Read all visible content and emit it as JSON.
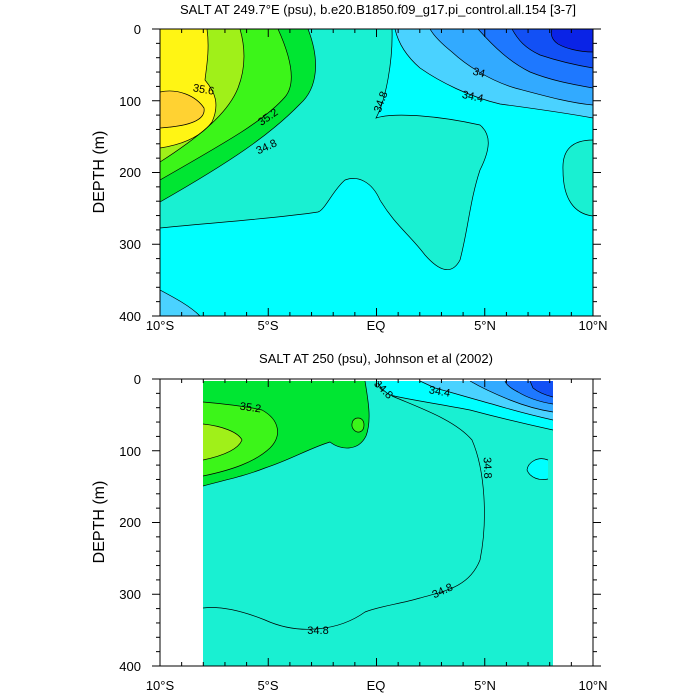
{
  "colors": {
    "c33_6": "#0a23e6",
    "c33_8": "#1250f5",
    "c34_0": "#1e78ff",
    "c34_2": "#32aaff",
    "c34_4": "#4ad2ff",
    "c34_6": "#00ffff",
    "c34_8": "#19f0d2",
    "c35_0": "#00e632",
    "c35_2": "#3cf519",
    "c35_4": "#a0f019",
    "c35_6": "#fff514",
    "c35_8": "#ffd232"
  },
  "chart_data": [
    {
      "type": "contour",
      "title": "SALT AT 249.7°E (psu), b.e20.B1850.f09_g17.pi_control.all.154 [3-7]",
      "xlabel": "",
      "ylabel": "DEPTH (m)",
      "x_ticks": [
        "10°S",
        "5°S",
        "EQ",
        "5°N",
        "10°N"
      ],
      "y_ticks": [
        "0",
        "100",
        "200",
        "300",
        "400"
      ],
      "xlim": [
        -10,
        10
      ],
      "ylim": [
        400,
        0
      ],
      "contour_labels": [
        "35.6",
        "35.2",
        "34.8",
        "34.8",
        "34",
        "34.4"
      ]
    },
    {
      "type": "contour",
      "title": "SALT AT 250 (psu), Johnson et al (2002)",
      "xlabel": "",
      "ylabel": "DEPTH (m)",
      "x_ticks": [
        "10°S",
        "5°S",
        "EQ",
        "5°N",
        "10°N"
      ],
      "y_ticks": [
        "0",
        "100",
        "200",
        "300",
        "400"
      ],
      "xlim": [
        -10,
        10
      ],
      "ylim": [
        400,
        0
      ],
      "contour_labels": [
        "35.2",
        "34.8",
        "34.4",
        "34.8",
        "34.8",
        "34.8"
      ]
    }
  ]
}
